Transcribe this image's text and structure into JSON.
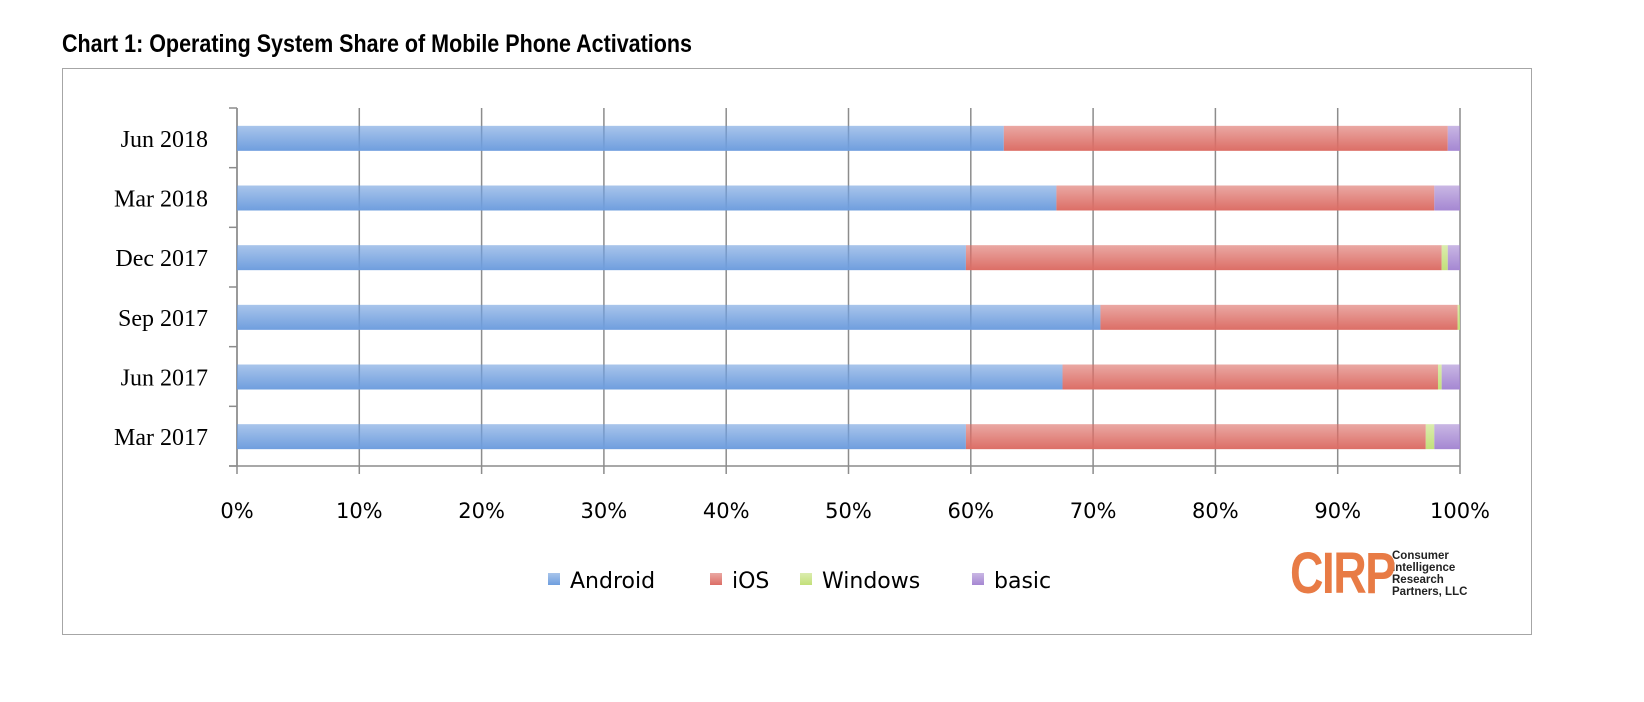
{
  "title": "Chart 1: Operating System Share of Mobile Phone Activations",
  "logo": {
    "mark": "CIRP",
    "text": [
      "Consumer",
      "Intelligence",
      "Research",
      "Partners, LLC"
    ]
  },
  "chart_data": {
    "type": "bar",
    "orientation": "horizontal",
    "stacked": "100%",
    "title": "Chart 1: Operating System Share of Mobile Phone Activations",
    "categories": [
      "Jun 2018",
      "Mar 2018",
      "Dec 2017",
      "Sep 2017",
      "Jun 2017",
      "Mar 2017"
    ],
    "series": [
      {
        "name": "Android",
        "color": "#6f9ede",
        "values": [
          62.7,
          67.0,
          59.6,
          70.6,
          67.5,
          59.6
        ]
      },
      {
        "name": "iOS",
        "color": "#dc6e66",
        "values": [
          36.3,
          30.9,
          38.9,
          29.2,
          30.7,
          37.6
        ]
      },
      {
        "name": "Windows",
        "color": "#c3e07a",
        "values": [
          0.0,
          0.0,
          0.5,
          0.2,
          0.3,
          0.7
        ]
      },
      {
        "name": "basic",
        "color": "#a587d2",
        "values": [
          1.0,
          2.1,
          1.0,
          0.0,
          1.5,
          2.1
        ]
      }
    ],
    "xlim": [
      0,
      100
    ],
    "xticks": [
      "0%",
      "10%",
      "20%",
      "30%",
      "40%",
      "50%",
      "60%",
      "70%",
      "80%",
      "90%",
      "100%"
    ],
    "grid": true,
    "legend": "bottom"
  }
}
